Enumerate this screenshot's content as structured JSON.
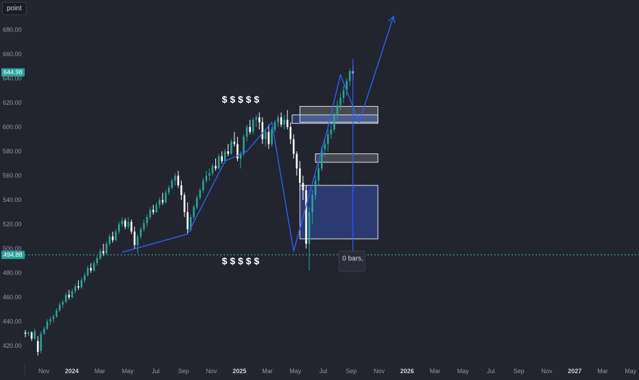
{
  "toolbar": {
    "point_label": "point"
  },
  "colors": {
    "background": "#22242e",
    "up": "#26a69a",
    "down": "#ffffff",
    "axis_text": "#9598a1",
    "trend_line": "#2962ff",
    "zone_blue": "#2d3f7e",
    "zone_gray": "#c8ccd6",
    "dotted_line": "#26a69a"
  },
  "chart_data": {
    "type": "candlestick",
    "title": "",
    "xlabel": "",
    "ylabel": "",
    "ylim": [
      406,
      700
    ],
    "y_ticks": [
      "420.00",
      "440.00",
      "460.00",
      "480.00",
      "500.00",
      "520.00",
      "540.00",
      "560.00",
      "580.00",
      "600.00",
      "620.00",
      "640.00",
      "660.00",
      "680.00"
    ],
    "x_ticks": [
      {
        "label": "Nov",
        "bold": false
      },
      {
        "label": "2024",
        "bold": true
      },
      {
        "label": "Mar",
        "bold": false
      },
      {
        "label": "May",
        "bold": false
      },
      {
        "label": "Jul",
        "bold": false
      },
      {
        "label": "Sep",
        "bold": false
      },
      {
        "label": "Nov",
        "bold": false
      },
      {
        "label": "2025",
        "bold": true
      },
      {
        "label": "Mar",
        "bold": false
      },
      {
        "label": "May",
        "bold": false
      },
      {
        "label": "Jul",
        "bold": false
      },
      {
        "label": "Sep",
        "bold": false
      },
      {
        "label": "Nov",
        "bold": false
      },
      {
        "label": "2026",
        "bold": true
      },
      {
        "label": "Mar",
        "bold": false
      },
      {
        "label": "May",
        "bold": false
      },
      {
        "label": "Jul",
        "bold": false
      },
      {
        "label": "Sep",
        "bold": false
      },
      {
        "label": "Nov",
        "bold": false
      },
      {
        "label": "2027",
        "bold": true
      },
      {
        "label": "Mar",
        "bold": false
      },
      {
        "label": "May",
        "bold": false
      }
    ],
    "grid": false,
    "price_labels": {
      "current": "644.98",
      "dotted_level": "494.88",
      "dotted_level_value": 494.88
    },
    "candles": [
      [
        431,
        433,
        427,
        430
      ],
      [
        430,
        432,
        428,
        431
      ],
      [
        431,
        432,
        424,
        426
      ],
      [
        426,
        434,
        425,
        432
      ],
      [
        424,
        428,
        412,
        415
      ],
      [
        416,
        432,
        414,
        430
      ],
      [
        430,
        436,
        429,
        434
      ],
      [
        434,
        442,
        433,
        440
      ],
      [
        440,
        444,
        437,
        442
      ],
      [
        442,
        446,
        439,
        444
      ],
      [
        444,
        451,
        443,
        449
      ],
      [
        449,
        456,
        448,
        454
      ],
      [
        454,
        458,
        451,
        456
      ],
      [
        456,
        464,
        455,
        462
      ],
      [
        462,
        466,
        458,
        460
      ],
      [
        460,
        467,
        459,
        465
      ],
      [
        465,
        471,
        463,
        469
      ],
      [
        469,
        474,
        466,
        468
      ],
      [
        468,
        476,
        467,
        474
      ],
      [
        474,
        480,
        472,
        478
      ],
      [
        478,
        486,
        477,
        484
      ],
      [
        484,
        488,
        480,
        482
      ],
      [
        482,
        490,
        481,
        488
      ],
      [
        488,
        494,
        486,
        492
      ],
      [
        492,
        500,
        491,
        498
      ],
      [
        498,
        504,
        494,
        496
      ],
      [
        496,
        506,
        495,
        504
      ],
      [
        504,
        512,
        502,
        510
      ],
      [
        510,
        514,
        505,
        507
      ],
      [
        507,
        516,
        506,
        514
      ],
      [
        514,
        522,
        512,
        520
      ],
      [
        520,
        526,
        518,
        523
      ],
      [
        523,
        525,
        516,
        518
      ],
      [
        518,
        526,
        516,
        522
      ],
      [
        522,
        524,
        512,
        514
      ],
      [
        514,
        518,
        500,
        503
      ],
      [
        503,
        512,
        496,
        510
      ],
      [
        510,
        518,
        508,
        516
      ],
      [
        516,
        524,
        514,
        521
      ],
      [
        521,
        528,
        518,
        526
      ],
      [
        526,
        534,
        524,
        532
      ],
      [
        532,
        536,
        528,
        530
      ],
      [
        530,
        538,
        529,
        536
      ],
      [
        536,
        542,
        533,
        540
      ],
      [
        540,
        546,
        536,
        538
      ],
      [
        538,
        548,
        537,
        546
      ],
      [
        546,
        552,
        544,
        550
      ],
      [
        550,
        558,
        549,
        556
      ],
      [
        556,
        562,
        552,
        560
      ],
      [
        560,
        564,
        550,
        552
      ],
      [
        552,
        556,
        540,
        544
      ],
      [
        544,
        546,
        526,
        530
      ],
      [
        530,
        538,
        512,
        516
      ],
      [
        516,
        528,
        514,
        526
      ],
      [
        526,
        536,
        524,
        534
      ],
      [
        534,
        544,
        532,
        542
      ],
      [
        542,
        550,
        540,
        548
      ],
      [
        548,
        558,
        546,
        556
      ],
      [
        556,
        564,
        554,
        560
      ],
      [
        560,
        566,
        556,
        562
      ],
      [
        562,
        570,
        560,
        568
      ],
      [
        568,
        574,
        564,
        566
      ],
      [
        566,
        578,
        565,
        576
      ],
      [
        576,
        580,
        570,
        572
      ],
      [
        572,
        582,
        570,
        580
      ],
      [
        580,
        586,
        576,
        578
      ],
      [
        578,
        590,
        577,
        588
      ],
      [
        588,
        596,
        584,
        586
      ],
      [
        586,
        592,
        572,
        574
      ],
      [
        574,
        580,
        566,
        578
      ],
      [
        578,
        594,
        576,
        592
      ],
      [
        592,
        602,
        588,
        600
      ],
      [
        600,
        606,
        594,
        596
      ],
      [
        596,
        608,
        594,
        606
      ],
      [
        606,
        610,
        600,
        608
      ],
      [
        608,
        612,
        598,
        604
      ],
      [
        604,
        608,
        586,
        590
      ],
      [
        590,
        598,
        584,
        596
      ],
      [
        596,
        602,
        582,
        586
      ],
      [
        586,
        600,
        584,
        598
      ],
      [
        598,
        606,
        596,
        604
      ],
      [
        604,
        610,
        600,
        608
      ],
      [
        608,
        612,
        600,
        602
      ],
      [
        602,
        610,
        598,
        606
      ],
      [
        606,
        614,
        598,
        600
      ],
      [
        600,
        604,
        586,
        590
      ],
      [
        590,
        594,
        574,
        578
      ],
      [
        578,
        580,
        560,
        566
      ],
      [
        566,
        572,
        548,
        554
      ],
      [
        554,
        560,
        540,
        548
      ],
      [
        548,
        552,
        500,
        504
      ],
      [
        504,
        534,
        482,
        530
      ],
      [
        530,
        548,
        520,
        544
      ],
      [
        544,
        560,
        540,
        556
      ],
      [
        556,
        570,
        552,
        566
      ],
      [
        566,
        584,
        564,
        582
      ],
      [
        582,
        590,
        576,
        586
      ],
      [
        586,
        598,
        580,
        594
      ],
      [
        594,
        602,
        590,
        598
      ],
      [
        598,
        612,
        596,
        610
      ],
      [
        610,
        622,
        606,
        618
      ],
      [
        618,
        628,
        614,
        624
      ],
      [
        624,
        634,
        620,
        630
      ],
      [
        630,
        640,
        626,
        638
      ],
      [
        638,
        648,
        634,
        646
      ],
      [
        646,
        650,
        640,
        644
      ]
    ]
  },
  "annotations": {
    "top_marks": "$ $ $ $ $",
    "bottom_marks": "$ $ $ $ $",
    "tooltip": "0 bars,",
    "zones": [
      {
        "kind": "blue",
        "x_start": 85.5,
        "x_end": 113,
        "y_top": 610,
        "y_bottom": 603
      },
      {
        "kind": "gray",
        "x_start": 88,
        "x_end": 113,
        "y_top": 617,
        "y_bottom": 604
      },
      {
        "kind": "gray",
        "x_start": 93,
        "x_end": 113,
        "y_top": 578,
        "y_bottom": 571
      },
      {
        "kind": "blue",
        "x_start": 88,
        "x_end": 113,
        "y_top": 552,
        "y_bottom": 508
      }
    ],
    "trend_path": [
      [
        31,
        497
      ],
      [
        52,
        512
      ],
      [
        64,
        572
      ],
      [
        71,
        580
      ],
      [
        79,
        604
      ],
      [
        86,
        498
      ],
      [
        97,
        600
      ],
      [
        101,
        643
      ],
      [
        107,
        604
      ],
      [
        118,
        691
      ]
    ]
  }
}
